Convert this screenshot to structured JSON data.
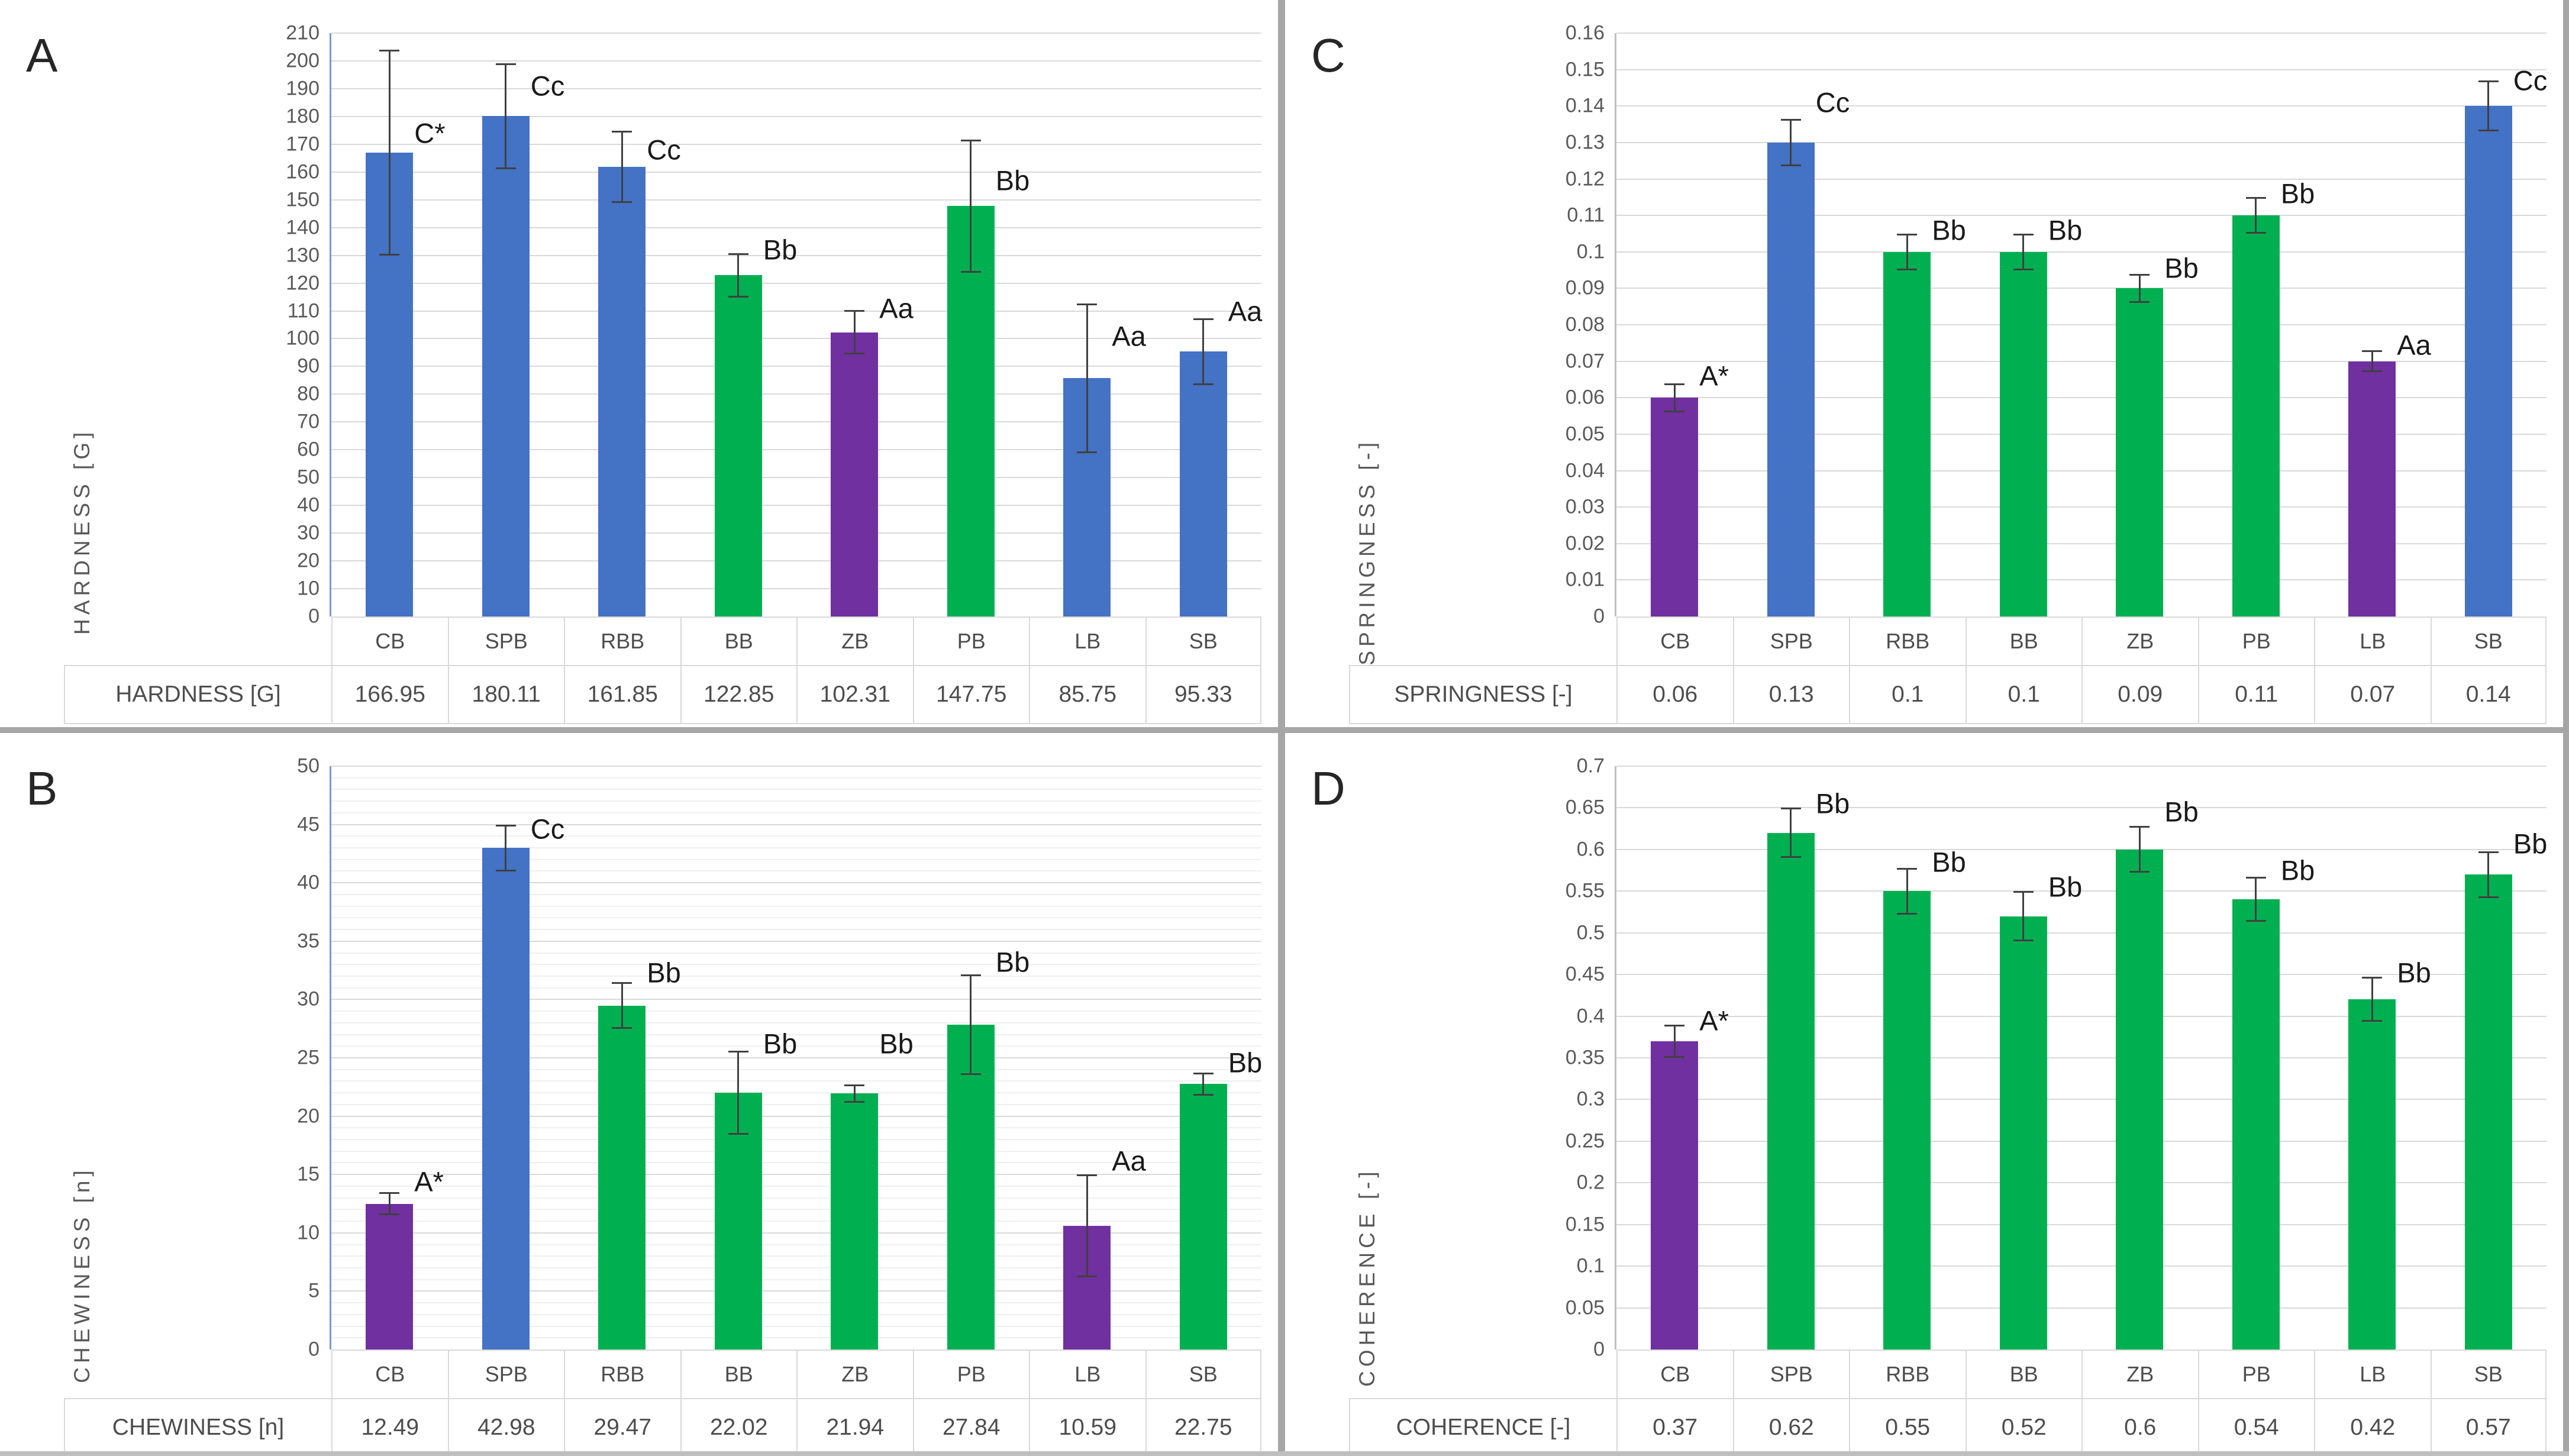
{
  "figure": {
    "categories": [
      "CB",
      "SPB",
      "RBB",
      "BB",
      "ZB",
      "PB",
      "LB",
      "SB"
    ],
    "colors": {
      "blue": "#4472C4",
      "green": "#00B050",
      "purple": "#7030A0"
    },
    "grid_color": "#D9D9D9",
    "divider_color": "#A6A6A6"
  },
  "chart_data": [
    {
      "type": "bar",
      "panel_letter": "A",
      "title": "",
      "ylabel": "HARDNESS [G]",
      "table_row_label": "HARDNESS [G]",
      "categories": [
        "CB",
        "SPB",
        "RBB",
        "BB",
        "ZB",
        "PB",
        "LB",
        "SB"
      ],
      "values": [
        166.95,
        180.11,
        161.85,
        122.85,
        102.31,
        147.75,
        85.75,
        95.33
      ],
      "value_labels": [
        "166.95",
        "180.11",
        "161.85",
        "122.85",
        "102.31",
        "147.75",
        "85.75",
        "95.33"
      ],
      "errors": [
        37,
        19,
        13,
        8,
        8,
        24,
        27,
        12
      ],
      "annotations": [
        "C*",
        "Cc",
        "Cc",
        "Bb",
        "Aa",
        "Bb",
        "Aa",
        "Aa"
      ],
      "annotation_y": [
        174,
        191,
        168,
        132,
        111,
        157,
        101,
        110
      ],
      "bar_colors": [
        "#4472C4",
        "#4472C4",
        "#4472C4",
        "#00B050",
        "#7030A0",
        "#00B050",
        "#4472C4",
        "#4472C4"
      ],
      "ylim": [
        0,
        210
      ],
      "ytick_step": 10,
      "minor_step": null,
      "grid": true,
      "legend": "none",
      "axis_color": "#7C99CF"
    },
    {
      "type": "bar",
      "panel_letter": "B",
      "title": "",
      "ylabel": "CHEWINESS [n]",
      "table_row_label": "CHEWINESS [n]",
      "categories": [
        "CB",
        "SPB",
        "RBB",
        "BB",
        "ZB",
        "PB",
        "LB",
        "SB"
      ],
      "values": [
        12.49,
        42.98,
        29.47,
        22.02,
        21.94,
        27.84,
        10.59,
        22.75
      ],
      "value_labels": [
        "12.49",
        "42.98",
        "29.47",
        "22.02",
        "21.94",
        "27.84",
        "10.59",
        "22.75"
      ],
      "errors": [
        1.0,
        2.0,
        2.0,
        3.6,
        0.8,
        4.3,
        4.4,
        1.0
      ],
      "annotations": [
        "A*",
        "Cc",
        "Bb",
        "Bb",
        "Bb",
        "Bb",
        "Aa",
        "Bb"
      ],
      "annotation_y": [
        14.4,
        44.6,
        32.3,
        26.2,
        26.2,
        33.2,
        16.2,
        24.6
      ],
      "bar_colors": [
        "#7030A0",
        "#4472C4",
        "#00B050",
        "#00B050",
        "#00B050",
        "#00B050",
        "#7030A0",
        "#00B050"
      ],
      "ylim": [
        0,
        50
      ],
      "ytick_step": 5,
      "minor_step": 1,
      "grid": true,
      "legend": "none",
      "axis_color": "#7C99CF"
    },
    {
      "type": "bar",
      "panel_letter": "C",
      "title": "",
      "ylabel": "SPRINGNESS [-]",
      "table_row_label": "SPRINGNESS [-]",
      "categories": [
        "CB",
        "SPB",
        "RBB",
        "BB",
        "ZB",
        "PB",
        "LB",
        "SB"
      ],
      "values": [
        0.06,
        0.13,
        0.1,
        0.1,
        0.09,
        0.11,
        0.07,
        0.14
      ],
      "value_labels": [
        "0.06",
        "0.13",
        "0.1",
        "0.1",
        "0.09",
        "0.11",
        "0.07",
        "0.14"
      ],
      "errors": [
        0.004,
        0.0065,
        0.005,
        0.005,
        0.004,
        0.005,
        0.003,
        0.007
      ],
      "annotations": [
        "A*",
        "Cc",
        "Bb",
        "Bb",
        "Bb",
        "Bb",
        "Aa",
        "Cc"
      ],
      "annotation_y": [
        0.066,
        0.141,
        0.106,
        0.106,
        0.0955,
        0.116,
        0.0745,
        0.147
      ],
      "bar_colors": [
        "#7030A0",
        "#4472C4",
        "#00B050",
        "#00B050",
        "#00B050",
        "#00B050",
        "#7030A0",
        "#4472C4"
      ],
      "ylim": [
        0,
        0.16
      ],
      "ytick_step": 0.01,
      "minor_step": null,
      "grid": true,
      "legend": "none",
      "axis_color": "#BFBFBF"
    },
    {
      "type": "bar",
      "panel_letter": "D",
      "title": "",
      "ylabel": "COHERENCE [-]",
      "table_row_label": "COHERENCE [-]",
      "categories": [
        "CB",
        "SPB",
        "RBB",
        "BB",
        "ZB",
        "PB",
        "LB",
        "SB"
      ],
      "values": [
        0.37,
        0.62,
        0.55,
        0.52,
        0.6,
        0.54,
        0.42,
        0.57
      ],
      "value_labels": [
        "0.37",
        "0.62",
        "0.55",
        "0.52",
        "0.6",
        "0.54",
        "0.42",
        "0.57"
      ],
      "errors": [
        0.02,
        0.03,
        0.028,
        0.03,
        0.028,
        0.027,
        0.027,
        0.028
      ],
      "annotations": [
        "A*",
        "Bb",
        "Bb",
        "Bb",
        "Bb",
        "Bb",
        "Bb",
        "Bb"
      ],
      "annotation_y": [
        0.395,
        0.655,
        0.585,
        0.555,
        0.645,
        0.575,
        0.452,
        0.607
      ],
      "bar_colors": [
        "#7030A0",
        "#00B050",
        "#00B050",
        "#00B050",
        "#00B050",
        "#00B050",
        "#00B050",
        "#00B050"
      ],
      "ylim": [
        0,
        0.7
      ],
      "ytick_step": 0.05,
      "minor_step": null,
      "grid": true,
      "legend": "none",
      "axis_color": "#BFBFBF"
    }
  ]
}
